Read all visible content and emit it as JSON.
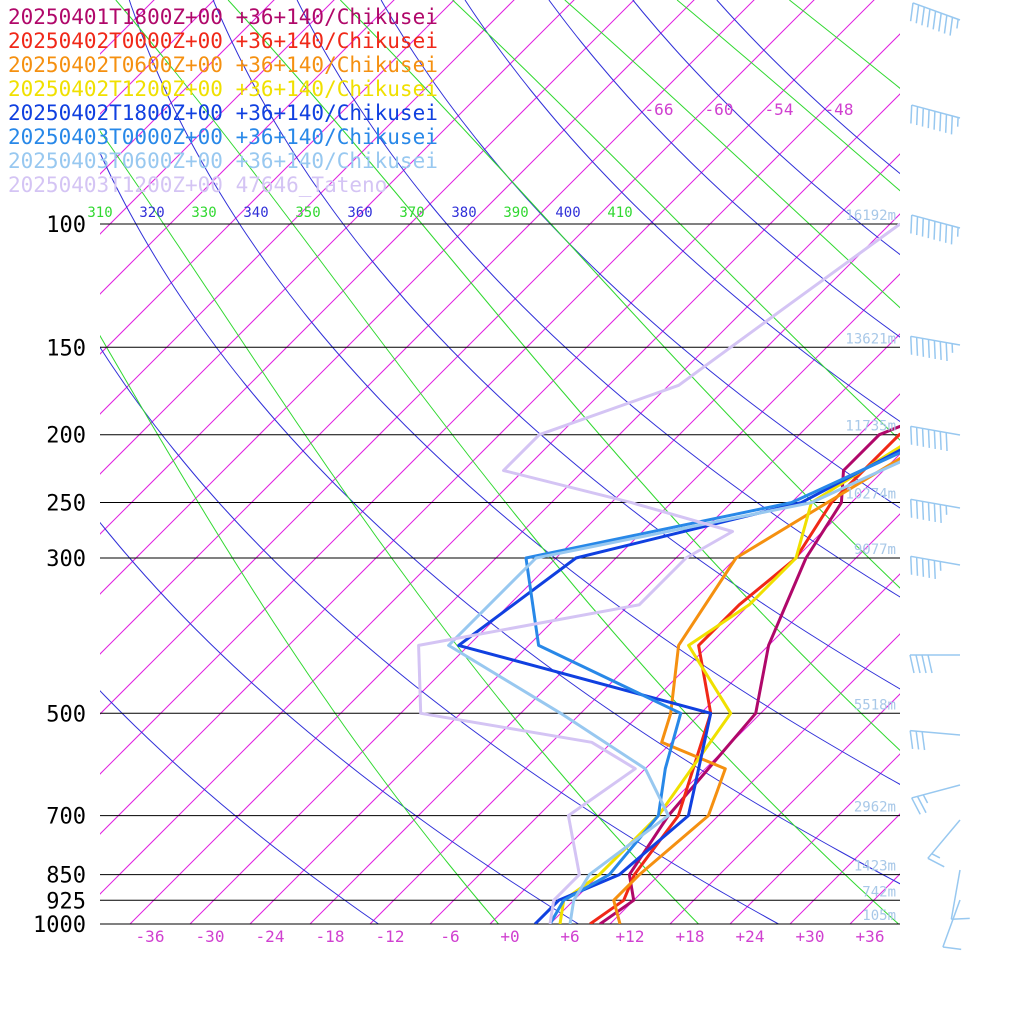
{
  "chart_data": {
    "type": "line",
    "pressure_levels": [
      {
        "p": 100,
        "label": "100",
        "height": "16192m"
      },
      {
        "p": 150,
        "label": "150",
        "height": "13621m"
      },
      {
        "p": 200,
        "label": "200",
        "height": "11735m"
      },
      {
        "p": 250,
        "label": "250",
        "height": "10274m"
      },
      {
        "p": 300,
        "label": "300",
        "height": "9077m"
      },
      {
        "p": 500,
        "label": "500",
        "height": "5518m"
      },
      {
        "p": 700,
        "label": "700",
        "height": "2962m"
      },
      {
        "p": 850,
        "label": "850",
        "height": "1423m"
      },
      {
        "p": 925,
        "label": "925",
        "height": "742m"
      },
      {
        "p": 1000,
        "label": "1000",
        "height": "105m"
      }
    ],
    "x_ticks": [
      -36,
      -30,
      -24,
      -18,
      -12,
      -6,
      0,
      6,
      12,
      18,
      24,
      30,
      36
    ],
    "x_tick_labels": [
      "-36",
      "-30",
      "-24",
      "-18",
      "-12",
      "-6",
      "+0",
      "+6",
      "+12",
      "+18",
      "+24",
      "+30",
      "+36"
    ],
    "upper_isotherm_labels": [
      "-66",
      "-60",
      "-54",
      "-48"
    ],
    "theta_labels": [
      "310",
      "320",
      "330",
      "340",
      "350",
      "360",
      "370",
      "380",
      "390",
      "400",
      "410"
    ],
    "xlim": [
      -40,
      40
    ],
    "ylim": [
      1000,
      100
    ],
    "series": [
      {
        "name": "20250401T1800Z+00 +36+140/Chikusei",
        "color": "#b0086a",
        "points": [
          [
            1000,
            9
          ],
          [
            925,
            10
          ],
          [
            850,
            7
          ],
          [
            700,
            5
          ],
          [
            500,
            3.5
          ],
          [
            400,
            -2
          ],
          [
            300,
            -7
          ],
          [
            250,
            -9
          ],
          [
            225,
            -12
          ],
          [
            200,
            -12
          ],
          [
            175,
            -6
          ],
          [
            150,
            -2
          ],
          [
            100,
            -4
          ]
        ]
      },
      {
        "name": "20250402T0000Z+00 +36+140/Chikusei",
        "color": "#f02818",
        "points": [
          [
            1000,
            8
          ],
          [
            925,
            9
          ],
          [
            850,
            7.5
          ],
          [
            700,
            6
          ],
          [
            500,
            -1
          ],
          [
            400,
            -9
          ],
          [
            350,
            -9
          ],
          [
            300,
            -8
          ],
          [
            250,
            -10
          ],
          [
            200,
            -10
          ],
          [
            175,
            -7
          ],
          [
            150,
            -4
          ],
          [
            100,
            -3
          ]
        ]
      },
      {
        "name": "20250402T0600Z+00 +36+140/Chikusei",
        "color": "#f59010",
        "points": [
          [
            1000,
            11
          ],
          [
            925,
            8
          ],
          [
            850,
            8
          ],
          [
            700,
            9
          ],
          [
            600,
            6
          ],
          [
            550,
            -3
          ],
          [
            500,
            -5
          ],
          [
            400,
            -11
          ],
          [
            300,
            -14
          ],
          [
            200,
            -6
          ],
          [
            150,
            -1
          ],
          [
            100,
            -1
          ]
        ]
      },
      {
        "name": "20250402T1200Z+00 +36+140/Chikusei",
        "color": "#f0e000",
        "points": [
          [
            1000,
            5
          ],
          [
            925,
            3
          ],
          [
            850,
            4
          ],
          [
            700,
            4
          ],
          [
            500,
            1
          ],
          [
            400,
            -10
          ],
          [
            350,
            -8
          ],
          [
            300,
            -8
          ],
          [
            250,
            -12
          ],
          [
            200,
            -8
          ],
          [
            180,
            -3
          ],
          [
            150,
            -2
          ],
          [
            100,
            2
          ]
        ]
      },
      {
        "name": "20250402T1800Z+00 +36+140/Chikusei",
        "color": "#1040e0",
        "points": [
          [
            1000,
            2.5
          ],
          [
            925,
            2.5
          ],
          [
            850,
            6
          ],
          [
            700,
            7
          ],
          [
            500,
            -1
          ],
          [
            400,
            -33
          ],
          [
            300,
            -30
          ],
          [
            250,
            -13
          ],
          [
            200,
            -7
          ],
          [
            150,
            -2
          ],
          [
            100,
            3
          ]
        ]
      },
      {
        "name": "20250403T0000Z+00 +36+140/Chikusei",
        "color": "#2888e8",
        "points": [
          [
            1000,
            4
          ],
          [
            925,
            3
          ],
          [
            850,
            5
          ],
          [
            700,
            4
          ],
          [
            600,
            0
          ],
          [
            500,
            -4
          ],
          [
            400,
            -25
          ],
          [
            300,
            -35
          ],
          [
            250,
            -14
          ],
          [
            200,
            -6
          ],
          [
            150,
            0
          ],
          [
            100,
            3
          ]
        ]
      },
      {
        "name": "20250403T0600Z+00 +36+140/Chikusei",
        "color": "#98c8f0",
        "points": [
          [
            1000,
            6
          ],
          [
            925,
            4
          ],
          [
            850,
            3
          ],
          [
            700,
            5
          ],
          [
            600,
            -2
          ],
          [
            500,
            -16
          ],
          [
            400,
            -34
          ],
          [
            300,
            -34
          ],
          [
            250,
            -12
          ],
          [
            200,
            -4
          ],
          [
            150,
            0
          ],
          [
            100,
            2
          ]
        ]
      },
      {
        "name": "20250403T1200Z+00 47646_Tateno",
        "color": "#d4c4f4",
        "points": [
          [
            1000,
            4
          ],
          [
            925,
            2
          ],
          [
            850,
            2
          ],
          [
            700,
            -5
          ],
          [
            600,
            -3
          ],
          [
            550,
            -10
          ],
          [
            500,
            -30
          ],
          [
            400,
            -37
          ],
          [
            350,
            -19
          ],
          [
            300,
            -19
          ],
          [
            275,
            -17
          ],
          [
            250,
            -30
          ],
          [
            225,
            -46
          ],
          [
            200,
            -46
          ],
          [
            170,
            -37
          ],
          [
            130,
            -34
          ],
          [
            100,
            -31
          ]
        ]
      }
    ],
    "wind_barbs": [
      {
        "label": "wind",
        "direction": 290,
        "speed": 95
      },
      {
        "label": "wind",
        "direction": 285,
        "speed": 90
      },
      {
        "label": "wind",
        "direction": 285,
        "speed": 85
      },
      {
        "label": "wind",
        "direction": 280,
        "speed": 75
      },
      {
        "label": "wind",
        "direction": 280,
        "speed": 70
      },
      {
        "label": "wind",
        "direction": 280,
        "speed": 65
      },
      {
        "label": "wind",
        "direction": 280,
        "speed": 55
      },
      {
        "label": "wind",
        "direction": 270,
        "speed": 40
      },
      {
        "label": "wind",
        "direction": 275,
        "speed": 30
      },
      {
        "label": "wind",
        "direction": 255,
        "speed": 25
      },
      {
        "label": "wind",
        "direction": 220,
        "speed": 15
      },
      {
        "label": "wind",
        "direction": 190,
        "speed": 10
      },
      {
        "label": "wind",
        "direction": 200,
        "speed": 10
      }
    ],
    "colors": {
      "isobar": "#000000",
      "isotherm": "#e020e0",
      "dry_adiabat": "#3030d8",
      "moist_adiabat": "#30d830",
      "height_label": "#a8c8e8",
      "tick_label": "#d040d0",
      "barb": "#98c8f0"
    }
  }
}
